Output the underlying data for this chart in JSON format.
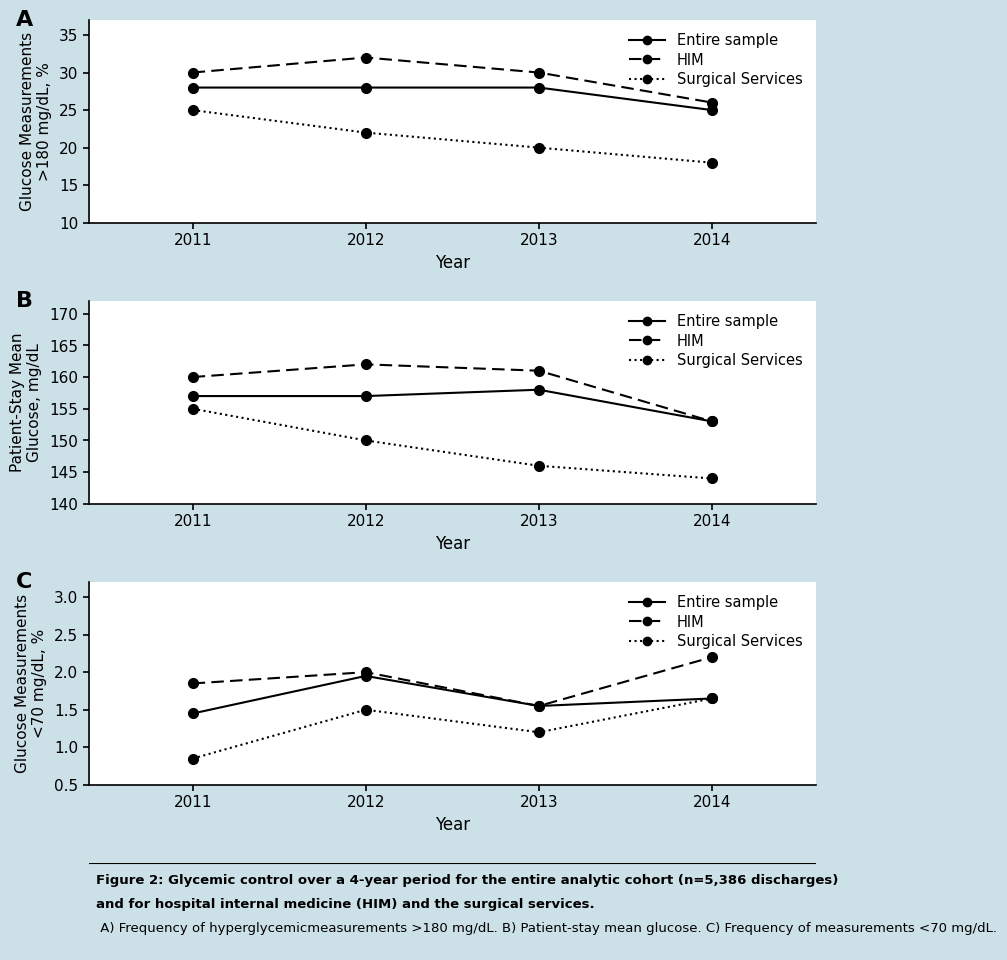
{
  "years": [
    2011,
    2012,
    2013,
    2014
  ],
  "panel_A": {
    "entire_sample": [
      28,
      28,
      28,
      25
    ],
    "HIM": [
      30,
      32,
      30,
      26
    ],
    "surgical_services": [
      25,
      22,
      20,
      18
    ],
    "ylabel": "Glucose Measurements\n>180 mg/dL, %",
    "ylim": [
      10,
      37
    ],
    "yticks": [
      10,
      15,
      20,
      25,
      30,
      35
    ],
    "label": "A"
  },
  "panel_B": {
    "entire_sample": [
      157,
      157,
      158,
      153
    ],
    "HIM": [
      160,
      162,
      161,
      153
    ],
    "surgical_services": [
      155,
      150,
      146,
      144
    ],
    "ylabel": "Patient-Stay Mean\nGlucose, mg/dL",
    "ylim": [
      140,
      172
    ],
    "yticks": [
      140,
      145,
      150,
      155,
      160,
      165,
      170
    ],
    "label": "B"
  },
  "panel_C": {
    "entire_sample": [
      1.45,
      1.95,
      1.55,
      1.65
    ],
    "HIM": [
      1.85,
      2.0,
      1.55,
      2.2
    ],
    "surgical_services": [
      0.85,
      1.5,
      1.2,
      1.65
    ],
    "ylabel": "Glucose Measurements\n<70 mg/dL, %",
    "ylim": [
      0.5,
      3.2
    ],
    "yticks": [
      0.5,
      1.0,
      1.5,
      2.0,
      2.5,
      3.0
    ],
    "label": "C"
  },
  "xlabel": "Year",
  "background_color": "#cce0e8",
  "plot_bg": "#ffffff",
  "line_color": "#000000",
  "caption_bold": "Figure 2: Glycemic control over a 4-year period for the entire analytic cohort (n=5,386 discharges)\nand for hospital internal medicine (HIM) and the surgical services.",
  "caption_normal": " A) Frequency of hyperglycemic\nmeasurements >180 mg/dL. B) Patient-stay mean glucose. C) Frequency of measurements <70 mg/dL."
}
